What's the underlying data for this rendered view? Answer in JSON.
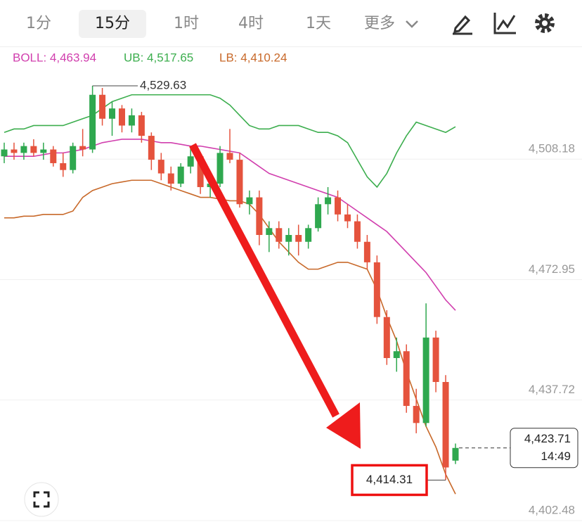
{
  "toolbar": {
    "tabs": [
      "1分",
      "15分",
      "1时",
      "4时",
      "1天"
    ],
    "active": 1,
    "more": "更多"
  },
  "chart_data": {
    "type": "candlestick",
    "up_color": "#2fa84f",
    "down_color": "#e5533d",
    "ylim": [
      4400.0,
      4541.35
    ],
    "yticks": [
      {
        "value": 4402.48,
        "label": "4,402.48"
      },
      {
        "value": 4437.72,
        "label": "4,437.72"
      },
      {
        "value": 4472.95,
        "label": "4,472.95"
      },
      {
        "value": 4508.18,
        "label": "4,508.18"
      }
    ],
    "grid": true,
    "open": [
      4509,
      4511,
      4510,
      4512,
      4510,
      4511,
      4507,
      4505,
      4512,
      4511,
      4527,
      4520,
      4523,
      4518,
      4521,
      4515,
      4508,
      4504,
      4501,
      4506,
      4509,
      4500,
      4501,
      4510,
      4508,
      4495,
      4497,
      4486,
      4488,
      4484,
      4486,
      4484,
      4488,
      4495,
      4497,
      4492,
      4490,
      4484,
      4478,
      4462,
      4450,
      4452,
      4436,
      4431,
      4456,
      4443,
      4420
    ],
    "high": [
      4513,
      4513,
      4513,
      4514,
      4513,
      4512,
      4510,
      4513,
      4517,
      4529.63,
      4529,
      4525,
      4524,
      4523,
      4522,
      4516,
      4510,
      4506,
      4507,
      4512,
      4510,
      4503,
      4512,
      4517,
      4510,
      4499,
      4499,
      4490,
      4490,
      4488,
      4489,
      4489,
      4497,
      4500,
      4499,
      4495,
      4492,
      4486,
      4480,
      4464,
      4456,
      4454,
      4441,
      4466,
      4458,
      4445,
      4425
    ],
    "low": [
      4507,
      4508,
      4508,
      4509,
      4508,
      4506,
      4503,
      4504,
      4509,
      4510,
      4518,
      4515,
      4516,
      4516,
      4513,
      4505,
      4502,
      4499,
      4500,
      4504,
      4498,
      4497,
      4500,
      4507,
      4494,
      4492,
      4483,
      4481,
      4482,
      4480,
      4480,
      4482,
      4487,
      4492,
      4490,
      4488,
      4482,
      4476,
      4460,
      4448,
      4446,
      4434,
      4428,
      4430,
      4440,
      4414.31,
      4419
    ],
    "close": [
      4511,
      4510,
      4512,
      4510,
      4511,
      4507,
      4505,
      4512,
      4511,
      4527,
      4520,
      4523,
      4518,
      4521,
      4515,
      4508,
      4504,
      4501,
      4506,
      4509,
      4500,
      4501,
      4510,
      4508,
      4495,
      4497,
      4486,
      4488,
      4484,
      4486,
      4484,
      4488,
      4495,
      4497,
      4492,
      4490,
      4484,
      4478,
      4462,
      4450,
      4452,
      4436,
      4431,
      4456,
      4443,
      4418,
      4423.71
    ],
    "bands": [
      {
        "legend": "BOLL: 4,463.94",
        "color": "#d13fae",
        "values": [
          4509,
          4509,
          4509,
          4509,
          4509.5,
          4510,
          4510,
          4510.5,
          4511,
          4512,
          4513,
          4513.5,
          4514,
          4514,
          4514,
          4513.5,
          4513,
          4513,
          4512.5,
          4512,
          4512,
          4511.5,
          4511,
          4510.5,
          4510,
          4508,
          4506,
          4504,
          4503,
          4502,
          4501,
          4500,
          4499,
          4498,
          4497,
          4495,
          4493,
          4491,
          4489,
          4487,
          4484,
          4481,
          4478,
          4475,
          4471,
          4467,
          4463.94
        ]
      },
      {
        "legend": "UB: 4,517.65",
        "color": "#3cae4e",
        "values": [
          4516,
          4517,
          4517,
          4518,
          4518,
          4518,
          4518,
          4519,
          4520,
          4521,
          4523,
          4525,
          4526,
          4527,
          4527,
          4527,
          4527,
          4527,
          4527,
          4527,
          4527,
          4527,
          4526,
          4524,
          4521,
          4518,
          4517,
          4517,
          4518,
          4518,
          4518,
          4517,
          4516,
          4516,
          4515,
          4513,
          4508,
          4503,
          4500,
          4504,
          4510,
          4515,
          4519,
          4518,
          4517,
          4516,
          4517.65
        ]
      },
      {
        "legend": "LB: 4,410.24",
        "color": "#c8692a",
        "values": [
          4491,
          4491,
          4491.5,
          4491.5,
          4492,
          4492,
          4492,
          4493,
          4497,
          4499,
          4500,
          4501,
          4501.5,
          4502,
          4502,
          4502,
          4501,
          4500,
          4499,
          4498,
          4497,
          4497,
          4496.5,
          4496,
          4496,
          4495,
          4492,
          4488,
          4484,
          4481,
          4478,
          4476,
          4476,
          4477,
          4478,
          4478,
          4477,
          4476,
          4470,
          4462,
          4455,
          4446,
          4438,
          4430,
          4424,
          4416,
          4410.24
        ]
      }
    ],
    "high_marker": {
      "value": 4529.63,
      "label": "4,529.63"
    },
    "low_marker": {
      "value": 4414.31,
      "label": "4,414.31"
    },
    "last_price": {
      "value": 4423.71,
      "label": "4,423.71",
      "time": "14:49"
    }
  }
}
